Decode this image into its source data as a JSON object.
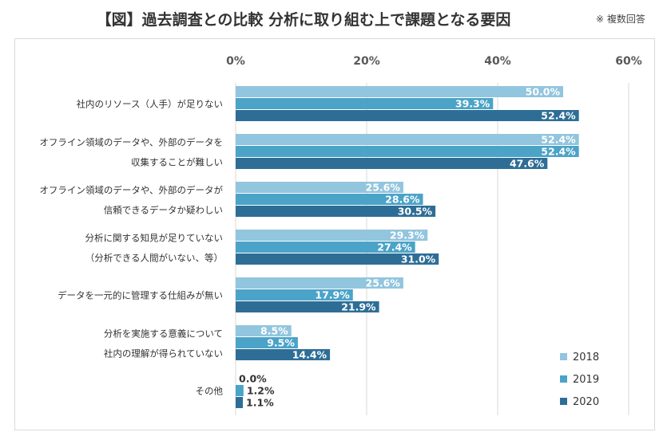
{
  "title": "【図】過去調査との比較  分析に取り組む上で課題となる要因",
  "note": "※ 複数回答",
  "colors": {
    "2018": "#92c5de",
    "2019": "#4ba3c8",
    "2020": "#2e6e96",
    "grid": "#d9d9d9",
    "axis_text": "#595959"
  },
  "chart_data": {
    "type": "bar",
    "orientation": "horizontal",
    "title": "【図】過去調査との比較  分析に取り組む上で課題となる要因",
    "xlim": [
      0,
      60
    ],
    "ticks": [
      "0%",
      "20%",
      "40%",
      "60%"
    ],
    "tick_values": [
      0,
      20,
      40,
      60
    ],
    "grid": true,
    "legend_position": "bottom-right",
    "categories": [
      [
        "社内のリソース（人手）が足りない"
      ],
      [
        "オフライン領域のデータや、外部のデータを",
        "収集することが難しい"
      ],
      [
        "オフライン領域のデータや、外部のデータが",
        "信頼できるデータか疑わしい"
      ],
      [
        "分析に関する知見が足りていない",
        "（分析できる人間がいない、等）"
      ],
      [
        "データを一元的に管理する仕組みが無い"
      ],
      [
        "分析を実施する意義について",
        "社内の理解が得られていない"
      ],
      [
        "その他"
      ]
    ],
    "series": [
      {
        "name": "2018",
        "values": [
          50.0,
          52.4,
          25.6,
          29.3,
          25.6,
          8.5,
          0.0
        ],
        "labels": [
          "50.0%",
          "52.4%",
          "25.6%",
          "29.3%",
          "25.6%",
          "8.5%",
          "0.0%"
        ]
      },
      {
        "name": "2019",
        "values": [
          39.3,
          52.4,
          28.6,
          27.4,
          17.9,
          9.5,
          1.2
        ],
        "labels": [
          "39.3%",
          "52.4%",
          "28.6%",
          "27.4%",
          "17.9%",
          "9.5%",
          "1.2%"
        ]
      },
      {
        "name": "2020",
        "values": [
          52.4,
          47.6,
          30.5,
          31.0,
          21.9,
          14.4,
          1.1
        ],
        "labels": [
          "52.4%",
          "47.6%",
          "30.5%",
          "31.0%",
          "21.9%",
          "14.4%",
          "1.1%"
        ]
      }
    ]
  }
}
